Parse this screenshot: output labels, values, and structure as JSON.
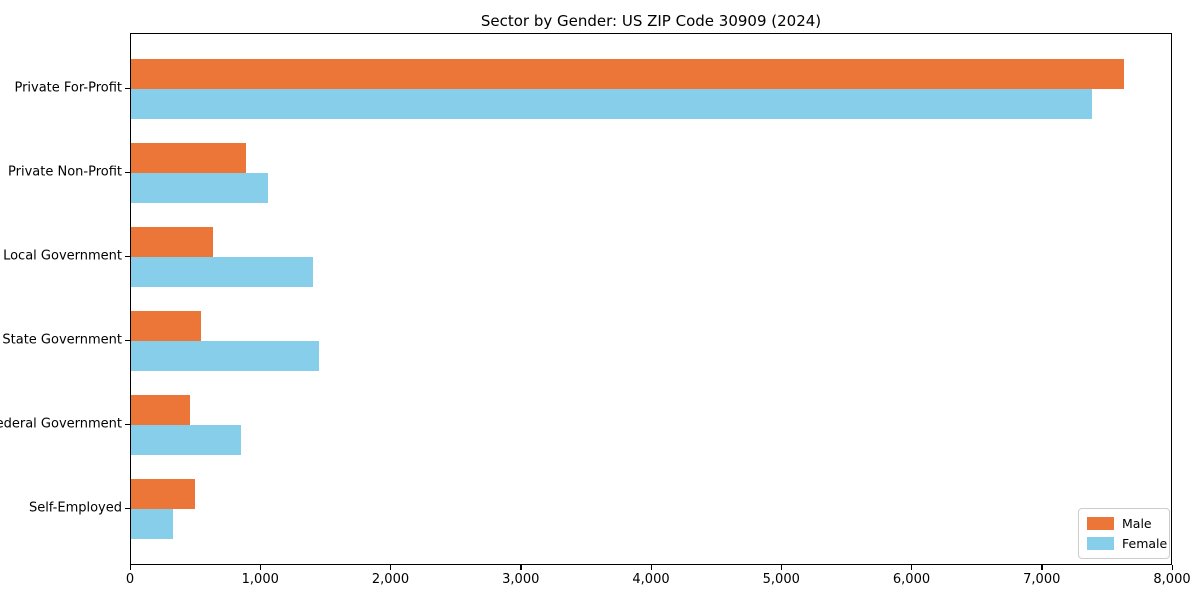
{
  "chart_data": {
    "type": "bar",
    "orientation": "horizontal",
    "title": "Sector by Gender: US ZIP Code 30909 (2024)",
    "categories": [
      "Private For-Profit",
      "Private Non-Profit",
      "Local Government",
      "State Government",
      "Federal Government",
      "Self-Employed"
    ],
    "series": [
      {
        "name": "Male",
        "color": "#EC7637",
        "values": [
          7620,
          880,
          630,
          540,
          455,
          490
        ]
      },
      {
        "name": "Female",
        "color": "#87CEEB",
        "values": [
          7380,
          1050,
          1400,
          1440,
          845,
          320
        ]
      }
    ],
    "xlim": [
      0,
      8000
    ],
    "x_ticks": [
      0,
      1000,
      2000,
      3000,
      4000,
      5000,
      6000,
      7000,
      8000
    ],
    "x_tick_labels": [
      "0",
      "1,000",
      "2,000",
      "3,000",
      "4,000",
      "5,000",
      "6,000",
      "7,000",
      "8,000"
    ],
    "legend": {
      "position": "lower right",
      "entries": [
        {
          "label": "Male",
          "color": "#EC7637"
        },
        {
          "label": "Female",
          "color": "#87CEEB"
        }
      ]
    },
    "grid": false,
    "xlabel": "",
    "ylabel": ""
  }
}
